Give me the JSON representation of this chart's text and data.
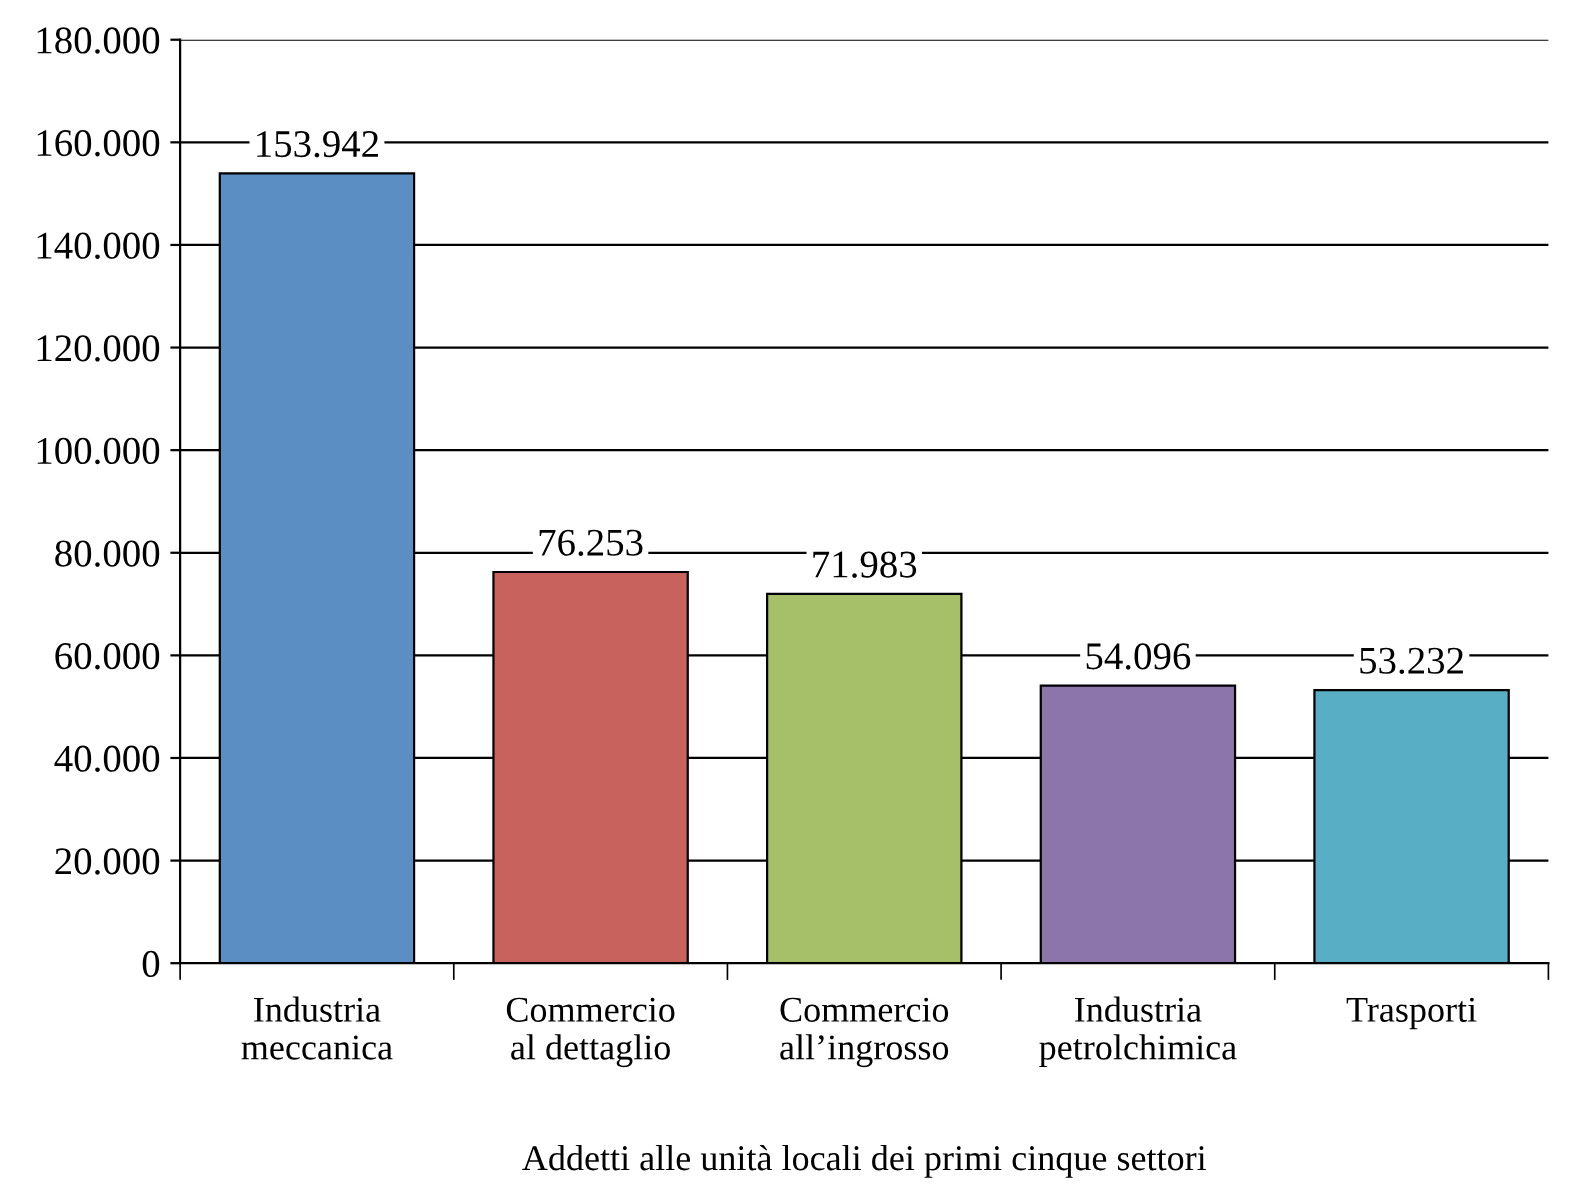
{
  "chart_data": {
    "type": "bar",
    "xlabel": "Addetti alle unità locali dei primi cinque settori",
    "categories": [
      "Industria\nmeccanica",
      "Commercio\nal dettaglio",
      "Commercio\nall’ingrosso",
      "Industria\npetrolchimica",
      "Trasporti"
    ],
    "values": [
      153942,
      76253,
      71983,
      54096,
      53232
    ],
    "value_labels": [
      "153.942",
      "76.253",
      "71.983",
      "54.096",
      "53.232"
    ],
    "colors": [
      "#5b8fc4",
      "#c8625c",
      "#a6bf69",
      "#8b75ab",
      "#58afc5"
    ],
    "ylim": [
      0,
      180000
    ],
    "yticks": [
      {
        "value": 0,
        "label": "0"
      },
      {
        "value": 20000,
        "label": "20.000"
      },
      {
        "value": 40000,
        "label": "40.000"
      },
      {
        "value": 60000,
        "label": "60.000"
      },
      {
        "value": 80000,
        "label": "80.000"
      },
      {
        "value": 100000,
        "label": "100.000"
      },
      {
        "value": 120000,
        "label": "120.000"
      },
      {
        "value": 140000,
        "label": "140.000"
      },
      {
        "value": 160000,
        "label": "160.000"
      },
      {
        "value": 180000,
        "label": "180.000"
      }
    ],
    "grid": "y",
    "legend": false
  }
}
